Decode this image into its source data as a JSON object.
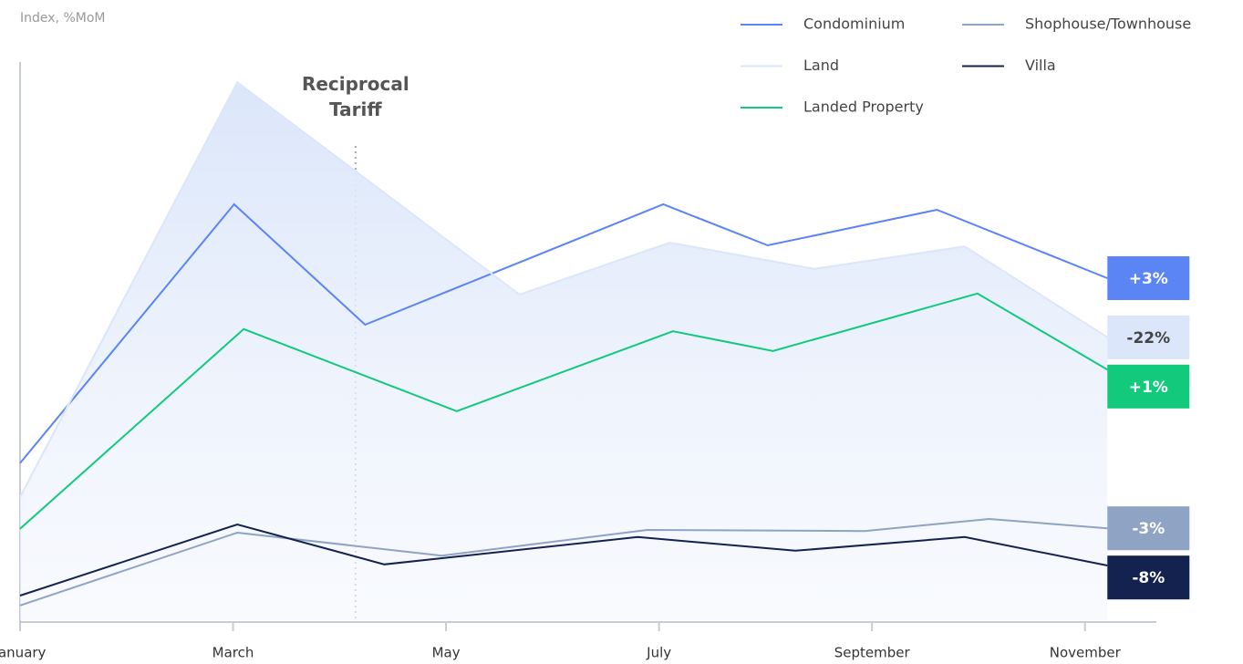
{
  "chart_data": {
    "type": "line",
    "y_label": "Index, %MoM",
    "xlim": [
      0,
      10.67
    ],
    "ylim": [
      0,
      100
    ],
    "xticks": [
      {
        "value": 0,
        "label": "January"
      },
      {
        "value": 2,
        "label": "March"
      },
      {
        "value": 4,
        "label": "May"
      },
      {
        "value": 6,
        "label": "July"
      },
      {
        "value": 8,
        "label": "September"
      },
      {
        "value": 10,
        "label": "November"
      }
    ],
    "annotation": {
      "text": "Reciprocal Tariff",
      "x": 3.15
    },
    "series": [
      {
        "name": "Condominium",
        "color": "#5b84f5",
        "end_label": "+3%",
        "label_text_color": "#ffffff",
        "x": [
          0,
          2.01,
          3.24,
          6.04,
          7.02,
          8.61,
          10.21
        ],
        "values": [
          28.7,
          76,
          54,
          76,
          68.5,
          75,
          62.5
        ]
      },
      {
        "name": "Shophouse/Townhouse",
        "color": "#8fa3c4",
        "end_label": "-3%",
        "label_text_color": "#ffffff",
        "x": [
          0,
          2.04,
          3.96,
          5.89,
          7.93,
          9.1,
          10.21
        ],
        "values": [
          2.7,
          16,
          11.8,
          16.5,
          16.3,
          18.5,
          16.8
        ]
      },
      {
        "name": "Land",
        "color": "#dbe6fa",
        "area": true,
        "end_label": "-22%",
        "label_text_color": "#444444",
        "x": [
          0,
          2.04,
          4.69,
          6.1,
          7.46,
          8.87,
          10.21
        ],
        "values": [
          22.5,
          98.3,
          59.5,
          69,
          64.2,
          68.3,
          51.7
        ]
      },
      {
        "name": "Villa",
        "color": "#13224f",
        "end_label": "-8%",
        "label_text_color": "#ffffff",
        "x": [
          0,
          2.04,
          3.42,
          5.8,
          7.28,
          8.87,
          10.21
        ],
        "values": [
          4.5,
          17.5,
          10.2,
          15.2,
          12.7,
          15.2,
          10
        ]
      },
      {
        "name": "Landed Property",
        "color": "#12c97c",
        "end_label": "+1%",
        "label_text_color": "#ffffff",
        "x": [
          0,
          2.1,
          4.1,
          6.13,
          7.07,
          8.99,
          10.21
        ],
        "values": [
          16.7,
          53.2,
          38.2,
          52.8,
          49.2,
          59.7,
          45.8
        ]
      }
    ]
  }
}
